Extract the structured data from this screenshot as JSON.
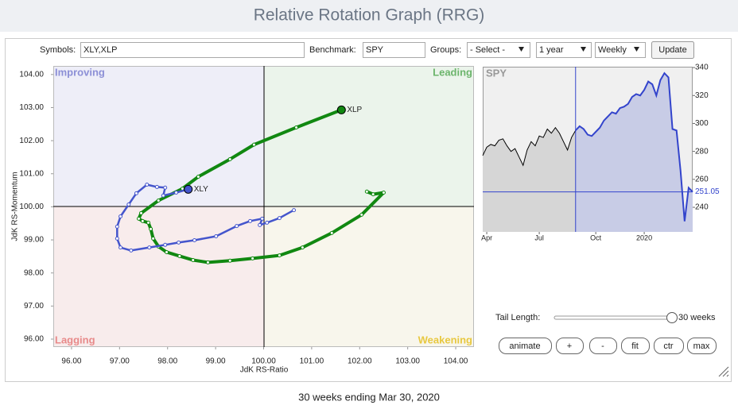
{
  "header": {
    "title": "Relative Rotation Graph (RRG)"
  },
  "controls": {
    "symbols_label": "Symbols:",
    "symbols": "XLY,XLP",
    "benchmark_label": "Benchmark:",
    "benchmark": "SPY",
    "groups_label": "Groups:",
    "groups": "- Select -",
    "period": "1 year",
    "interval": "Weekly",
    "update": "Update"
  },
  "tail": {
    "label": "Tail Length:",
    "value_label": "30 weeks"
  },
  "buttons": [
    "animate",
    "+",
    "-",
    "fit",
    "ctr",
    "max"
  ],
  "footer": "30 weeks ending Mar 30, 2020",
  "chart_data": [
    {
      "type": "rrg",
      "x_label": "JdK RS-Ratio",
      "y_label": "JdK RS-Momentum",
      "quadrants": [
        "Improving",
        "Leading",
        "Lagging",
        "Weakening"
      ],
      "xlim": [
        95.62,
        104.38
      ],
      "ylim": [
        95.76,
        104.26
      ],
      "xticks": [
        {
          "value": 96,
          "label": "96.00"
        },
        {
          "value": 97,
          "label": "97.00"
        },
        {
          "value": 98,
          "label": "98.00"
        },
        {
          "value": 99,
          "label": "99.00"
        },
        {
          "value": 100,
          "label": "100.00"
        },
        {
          "value": 101,
          "label": "101.00"
        },
        {
          "value": 102,
          "label": "102.00"
        },
        {
          "value": 103,
          "label": "103.00"
        },
        {
          "value": 104,
          "label": "104.00"
        }
      ],
      "yticks": [
        {
          "value": 96,
          "label": "96.00"
        },
        {
          "value": 97,
          "label": "97.00"
        },
        {
          "value": 98,
          "label": "98.00"
        },
        {
          "value": 99,
          "label": "99.00"
        },
        {
          "value": 100,
          "label": "100.00"
        },
        {
          "value": 101,
          "label": "101.00"
        },
        {
          "value": 102,
          "label": "102.00"
        },
        {
          "value": 103,
          "label": "103.00"
        },
        {
          "value": 104,
          "label": "104.00"
        }
      ],
      "series": [
        {
          "name": "XLP",
          "color": "#118811",
          "x": [
            102.15,
            102.28,
            102.5,
            102.04,
            101.42,
            100.81,
            100.33,
            99.77,
            99.3,
            98.84,
            98.53,
            98.25,
            97.98,
            97.81,
            97.7,
            97.65,
            97.6,
            97.48,
            97.4,
            97.45,
            97.81,
            98.31,
            98.64,
            99.3,
            99.8,
            100.68,
            101.62
          ],
          "values": [
            100.46,
            100.38,
            100.43,
            99.76,
            99.21,
            98.77,
            98.53,
            98.44,
            98.37,
            98.32,
            98.39,
            98.51,
            98.63,
            98.8,
            99.04,
            99.33,
            99.52,
            99.57,
            99.64,
            99.81,
            100.19,
            100.55,
            100.91,
            101.44,
            101.88,
            102.4,
            102.93
          ]
        },
        {
          "name": "XLY",
          "color": "#4455cc",
          "x": [
            100.63,
            100.33,
            100.07,
            99.92,
            99.97,
            99.72,
            99.44,
            99.01,
            98.56,
            98.23,
            97.95,
            97.62,
            97.24,
            97.02,
            96.95,
            96.95,
            97.02,
            97.19,
            97.35,
            97.57,
            97.78,
            97.95,
            97.91,
            98.18,
            98.43
          ],
          "values": [
            99.9,
            99.66,
            99.52,
            99.45,
            99.64,
            99.57,
            99.42,
            99.11,
            98.99,
            98.92,
            98.85,
            98.77,
            98.68,
            98.77,
            99.04,
            99.4,
            99.71,
            100.07,
            100.41,
            100.67,
            100.6,
            100.58,
            100.34,
            100.43,
            100.53
          ]
        }
      ]
    },
    {
      "type": "line",
      "title": "SPY",
      "color": "#3344cc",
      "current_label": "251.05",
      "categories": [
        null,
        "Apr",
        null,
        null,
        null,
        null,
        null,
        null,
        null,
        null,
        null,
        null,
        null,
        null,
        "Jul",
        null,
        null,
        null,
        null,
        null,
        null,
        null,
        null,
        null,
        null,
        null,
        null,
        null,
        "Oct",
        null,
        null,
        null,
        null,
        null,
        null,
        null,
        null,
        null,
        null,
        null,
        "2020",
        null,
        null,
        null,
        null,
        null,
        null,
        null,
        null,
        null,
        null,
        null,
        null
      ],
      "values": [
        277,
        283,
        285,
        284,
        288,
        289,
        284,
        280,
        282,
        276,
        270,
        281,
        287,
        284,
        291,
        290,
        296,
        293,
        297,
        293,
        287,
        281,
        290,
        295,
        298,
        296,
        292,
        291,
        294,
        297,
        302,
        305,
        308,
        307,
        311,
        312,
        314,
        319,
        321,
        320,
        324,
        330,
        328,
        320,
        331,
        336,
        333,
        296,
        295,
        266,
        230,
        254,
        251.05
      ],
      "ylim": [
        222.4,
        340.6
      ],
      "yticks": [
        240,
        260,
        280,
        300,
        320,
        340
      ]
    }
  ]
}
